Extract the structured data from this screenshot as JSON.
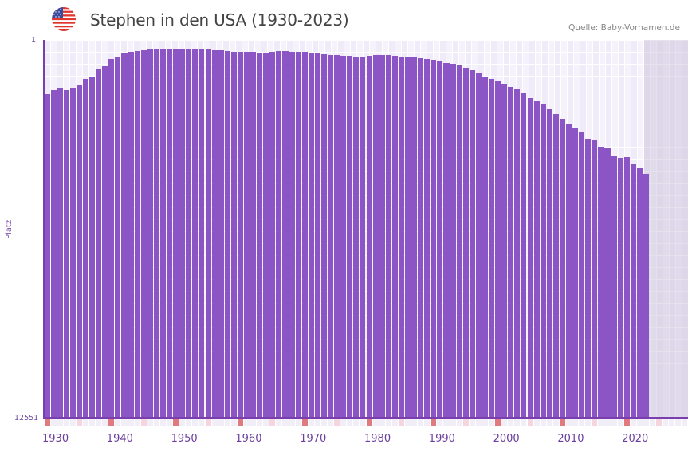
{
  "header": {
    "title": "Stephen in den USA (1930-2023)",
    "flag_icon": "us-flag-icon",
    "source": "Quelle: Baby-Vornamen.de"
  },
  "colors": {
    "bar": "#8b55c5",
    "axis": "#7a3fae",
    "grid_bg": "#f2eef9",
    "future_bg": "#e3deec",
    "marker_decade": "#e07a7f",
    "marker_half": "#f5d6de",
    "marker_default": "#f1eef8"
  },
  "chart_data": {
    "type": "bar",
    "title": "Stephen in den USA (1930-2023)",
    "xlabel": "",
    "ylabel": "Platz",
    "y_inverted": true,
    "ylim": [
      12551,
      1
    ],
    "yticks": [
      "1",
      "12551"
    ],
    "xticks": [
      "1930",
      "1940",
      "1950",
      "1960",
      "1970",
      "1980",
      "1990",
      "2000",
      "2010",
      "2020"
    ],
    "xrange": [
      1929,
      2029
    ],
    "grid": true,
    "legend": null,
    "categories": [
      1930,
      1931,
      1932,
      1933,
      1934,
      1935,
      1936,
      1937,
      1938,
      1939,
      1940,
      1941,
      1942,
      1943,
      1944,
      1945,
      1946,
      1947,
      1948,
      1949,
      1950,
      1951,
      1952,
      1953,
      1954,
      1955,
      1956,
      1957,
      1958,
      1959,
      1960,
      1961,
      1962,
      1963,
      1964,
      1965,
      1966,
      1967,
      1968,
      1969,
      1970,
      1971,
      1972,
      1973,
      1974,
      1975,
      1976,
      1977,
      1978,
      1979,
      1980,
      1981,
      1982,
      1983,
      1984,
      1985,
      1986,
      1987,
      1988,
      1989,
      1990,
      1991,
      1992,
      1993,
      1994,
      1995,
      1996,
      1997,
      1998,
      1999,
      2000,
      2001,
      2002,
      2003,
      2004,
      2005,
      2006,
      2007,
      2008,
      2009,
      2010,
      2011,
      2012,
      2013,
      2014,
      2015,
      2016,
      2017,
      2018,
      2019,
      2020,
      2021,
      2022,
      2023
    ],
    "values": [
      1802,
      1670,
      1617,
      1670,
      1617,
      1511,
      1299,
      1220,
      981,
      875,
      637,
      558,
      426,
      399,
      372,
      346,
      319,
      293,
      293,
      293,
      293,
      319,
      319,
      293,
      319,
      319,
      346,
      346,
      372,
      399,
      399,
      399,
      399,
      426,
      426,
      399,
      372,
      372,
      399,
      399,
      399,
      426,
      452,
      478,
      505,
      505,
      531,
      531,
      558,
      558,
      531,
      505,
      505,
      505,
      531,
      558,
      558,
      584,
      611,
      637,
      664,
      690,
      770,
      796,
      849,
      929,
      1008,
      1087,
      1220,
      1299,
      1379,
      1458,
      1564,
      1643,
      1775,
      1934,
      2040,
      2146,
      2305,
      2464,
      2622,
      2781,
      2913,
      3072,
      3284,
      3337,
      3576,
      3602,
      3867,
      3920,
      3893,
      4131,
      4264,
      4449
    ],
    "values_note": "approximate ranks estimated from bar heights (rank 1 = top, 12551 = bottom)"
  },
  "axes": {
    "y_top": "1",
    "y_bottom": "12551",
    "y_title": "Platz"
  }
}
